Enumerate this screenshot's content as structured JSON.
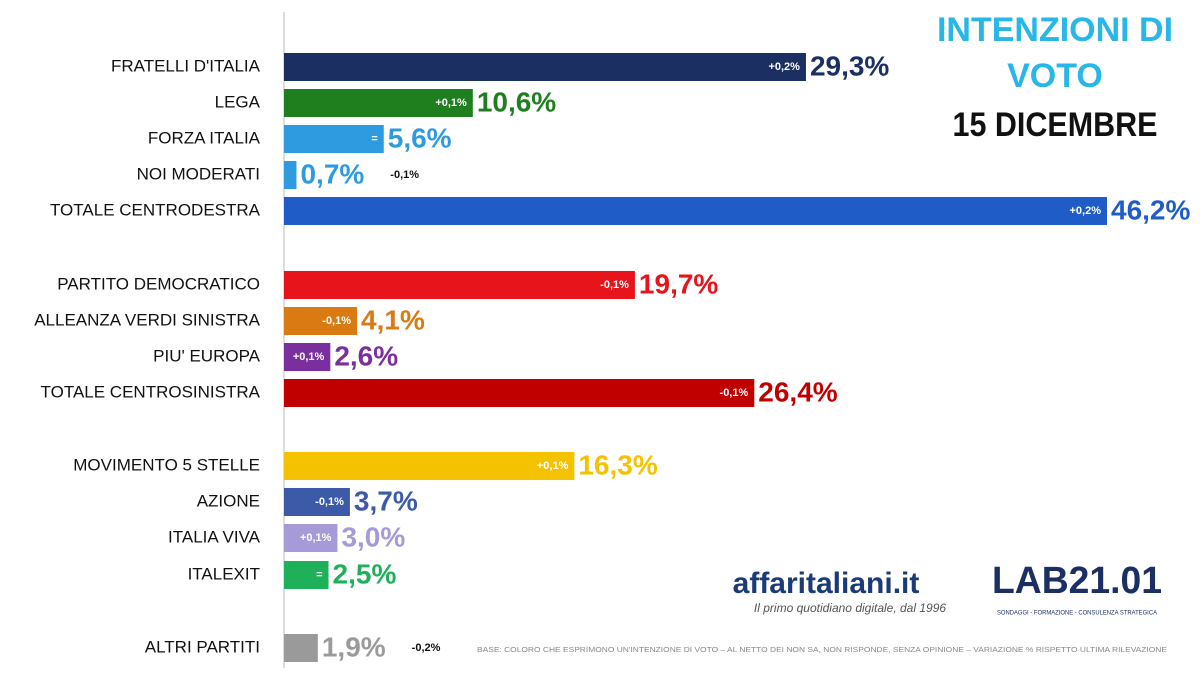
{
  "chart_data": {
    "type": "bar",
    "orientation": "horizontal",
    "title": "INTENZIONI DI VOTO",
    "subtitle": "15 DICEMBRE",
    "categories": [
      "FRATELLI D'ITALIA",
      "LEGA",
      "FORZA ITALIA",
      "NOI MODERATI",
      "TOTALE CENTRODESTRA",
      "PARTITO DEMOCRATICO",
      "ALLEANZA VERDI SINISTRA",
      "PIU' EUROPA",
      "TOTALE CENTROSINISTRA",
      "MOVIMENTO 5 STELLE",
      "AZIONE",
      "ITALIA VIVA",
      "ITALEXIT",
      "ALTRI PARTITI"
    ],
    "values": [
      29.3,
      10.6,
      5.6,
      0.7,
      46.2,
      19.7,
      4.1,
      2.6,
      26.4,
      16.3,
      3.7,
      3.0,
      2.5,
      1.9
    ],
    "value_labels": [
      "29,3%",
      "10,6%",
      "5,6%",
      "0,7%",
      "46,2%",
      "19,7%",
      "4,1%",
      "2,6%",
      "26,4%",
      "16,3%",
      "3,7%",
      "3,0%",
      "2,5%",
      "1,9%"
    ],
    "change_labels": [
      "+0,2%",
      "+0,1%",
      "=",
      "-0,1%",
      "+0,2%",
      "-0,1%",
      "-0,1%",
      "+0,1%",
      "-0,1%",
      "+0,1%",
      "-0,1%",
      "+0,1%",
      "=",
      "-0,2%"
    ],
    "colors": [
      "#1b2f63",
      "#1f7f1f",
      "#2e9be0",
      "#2e9be0",
      "#1f5cc8",
      "#e8141b",
      "#d97a12",
      "#7a2f9e",
      "#c00000",
      "#f5c200",
      "#3c5aa8",
      "#a79ad8",
      "#1fb05a",
      "#9a9a9a"
    ],
    "brand": "affaritaliani.it",
    "tagline": "Il primo quotidiano digitale, dal 1996",
    "lab": "LAB21.01",
    "lab_tagline": "SONDAGGI - FORMAZIONE - CONSULENZA STRATEGICA",
    "footnote": "BASE: COLORO CHE ESPRIMONO UN'INTENZIONE DI VOTO – AL NETTO DEI NON SA, NON RISPONDE, SENZA OPINIONE – VARIAZIONE % RISPETTO ULTIMA RILEVAZIONE"
  }
}
